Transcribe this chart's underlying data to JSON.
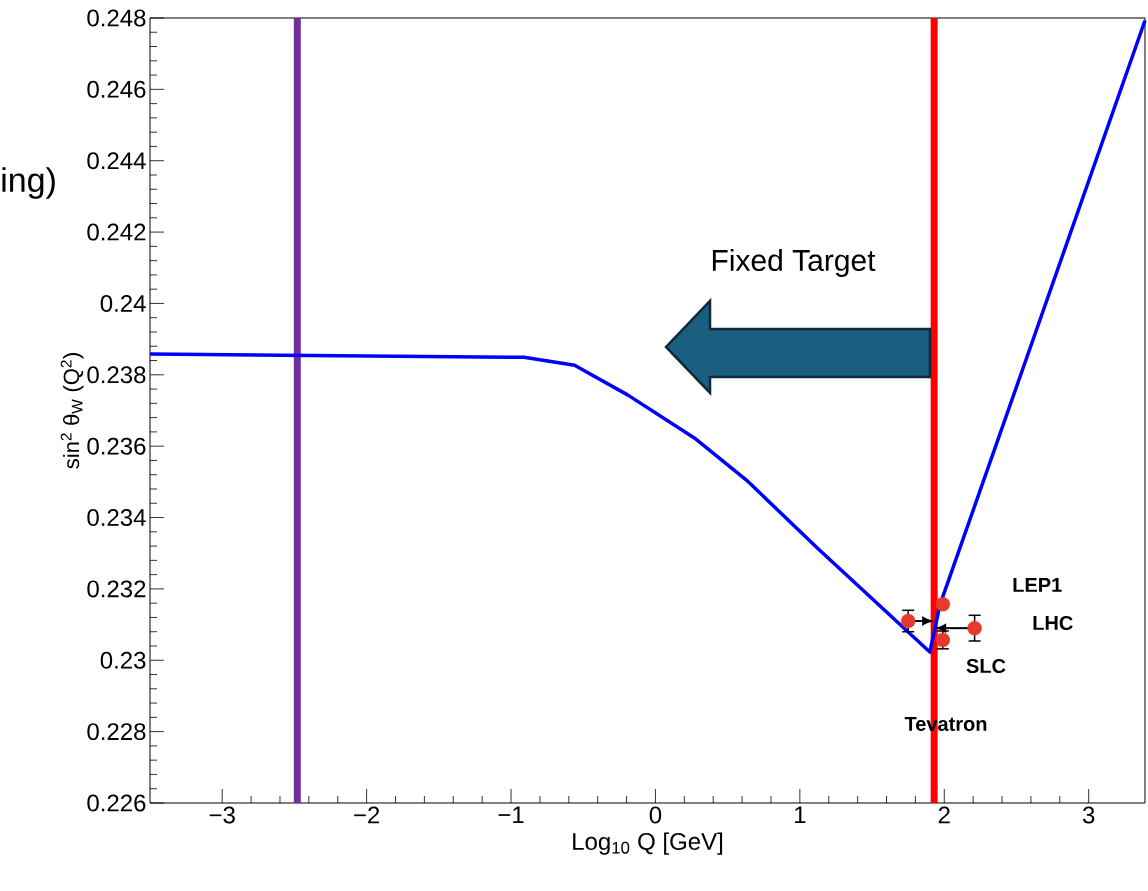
{
  "chart_data": {
    "type": "line",
    "xlabel": "Log$_{10}$ Q [GeV]",
    "ylabel": "sin$^{2}$ θ$_{W}$ (Q$^{2}$)",
    "xlim": [
      -3.5,
      3.39
    ],
    "ylim": [
      0.226,
      0.248
    ],
    "xticks": [
      {
        "value": -3,
        "label": "−3"
      },
      {
        "value": -2,
        "label": "−2"
      },
      {
        "value": -1,
        "label": "−1"
      },
      0,
      1,
      2,
      3
    ],
    "yticks": [
      0.226,
      0.228,
      0.23,
      0.232,
      0.234,
      0.236,
      0.238,
      0.24,
      0.242,
      0.244,
      0.246,
      0.248
    ],
    "grid": false,
    "series": [
      {
        "color": "#0000ff",
        "marker": "none",
        "x": [
          -3.5,
          -0.91,
          -0.56,
          -0.19,
          0.28,
          0.63,
          1.13,
          1.9,
          1.97,
          3.39
        ],
        "values": [
          0.23858,
          0.23849,
          0.23827,
          0.23743,
          0.2362,
          0.23505,
          0.23311,
          0.23023,
          0.23155,
          0.24793
        ]
      },
      {
        "type": "scatter",
        "color": "#e8392e",
        "marker": "circle",
        "x": [
          1.75,
          1.99,
          1.99,
          2.21
        ],
        "values": [
          0.2311,
          0.23157,
          0.23057,
          0.2309
        ],
        "errors": [
          0.0003,
          null,
          0.00025,
          0.00036
        ]
      }
    ],
    "ref_lines": [
      {
        "axis": "x",
        "value": -2.48,
        "color": "#7030a0"
      },
      {
        "axis": "x",
        "value": 1.93,
        "color": "#ff0000"
      }
    ],
    "annotations": [
      "LEP1",
      "LHC",
      "SLC",
      "Tevatron",
      "Fixed Target",
      "ing)"
    ]
  }
}
